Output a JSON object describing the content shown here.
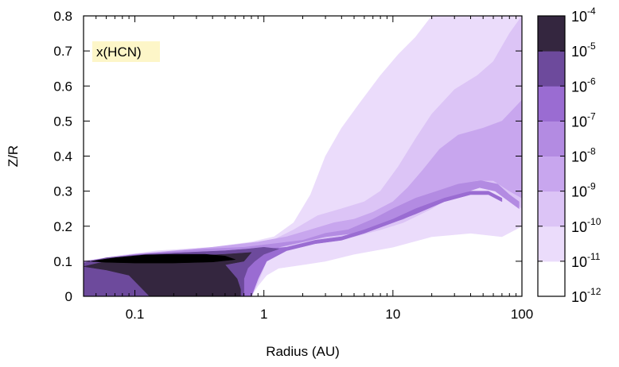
{
  "chart_data": {
    "type": "heatmap",
    "title": "",
    "annotation": "x(HCN)",
    "xlabel": "Radius (AU)",
    "ylabel": "Z/R",
    "xscale": "log",
    "xlim": [
      0.04,
      100
    ],
    "ylim": [
      0,
      0.8
    ],
    "x_ticks": [
      {
        "value": 0.1,
        "label": "0.1"
      },
      {
        "value": 1,
        "label": "1"
      },
      {
        "value": 10,
        "label": "10"
      },
      {
        "value": 100,
        "label": "100"
      }
    ],
    "y_ticks": [
      {
        "value": 0,
        "label": "0"
      },
      {
        "value": 0.1,
        "label": "0.1"
      },
      {
        "value": 0.2,
        "label": "0.2"
      },
      {
        "value": 0.3,
        "label": "0.3"
      },
      {
        "value": 0.4,
        "label": "0.4"
      },
      {
        "value": 0.5,
        "label": "0.5"
      },
      {
        "value": 0.6,
        "label": "0.6"
      },
      {
        "value": 0.7,
        "label": "0.7"
      },
      {
        "value": 0.8,
        "label": "0.8"
      }
    ],
    "colorbar": {
      "scale": "log",
      "placement": "right",
      "levels": [
        {
          "base": "10",
          "exp": "-12",
          "color": "#ffffff"
        },
        {
          "base": "10",
          "exp": "-11",
          "color": "#ebdcfb"
        },
        {
          "base": "10",
          "exp": "-10",
          "color": "#dcc4f6"
        },
        {
          "base": "10",
          "exp": "-9",
          "color": "#c8a6ee"
        },
        {
          "base": "10",
          "exp": "-8",
          "color": "#b38be2"
        },
        {
          "base": "10",
          "exp": "-7",
          "color": "#9a6cd2"
        },
        {
          "base": "10",
          "exp": "-6",
          "color": "#6d4a9c"
        },
        {
          "base": "10",
          "exp": "-5",
          "color": "#34263f"
        },
        {
          "base": "10",
          "exp": "-4",
          "color": "#000000"
        }
      ]
    },
    "regions": [
      {
        "level": 1,
        "points": [
          [
            0.04,
            0.1
          ],
          [
            0.07,
            0.115
          ],
          [
            0.15,
            0.13
          ],
          [
            0.4,
            0.14
          ],
          [
            0.8,
            0.155
          ],
          [
            1.2,
            0.17
          ],
          [
            1.7,
            0.21
          ],
          [
            2.3,
            0.29
          ],
          [
            3,
            0.4
          ],
          [
            4,
            0.48
          ],
          [
            5.5,
            0.55
          ],
          [
            8,
            0.63
          ],
          [
            11,
            0.69
          ],
          [
            15,
            0.74
          ],
          [
            20,
            0.8
          ],
          [
            100,
            0.8
          ],
          [
            100,
            0.2
          ],
          [
            70,
            0.17
          ],
          [
            40,
            0.18
          ],
          [
            20,
            0.17
          ],
          [
            10,
            0.14
          ],
          [
            5,
            0.12
          ],
          [
            3,
            0.1
          ],
          [
            2,
            0.09
          ],
          [
            1.3,
            0.08
          ],
          [
            1.05,
            0.06
          ],
          [
            0.9,
            0.03
          ],
          [
            0.8,
            0
          ],
          [
            0.04,
            0
          ]
        ]
      },
      {
        "level": 2,
        "points": [
          [
            0.04,
            0.1
          ],
          [
            0.1,
            0.12
          ],
          [
            0.5,
            0.14
          ],
          [
            1.1,
            0.155
          ],
          [
            1.7,
            0.19
          ],
          [
            2.6,
            0.23
          ],
          [
            4,
            0.25
          ],
          [
            6,
            0.27
          ],
          [
            8,
            0.3
          ],
          [
            11,
            0.37
          ],
          [
            15,
            0.45
          ],
          [
            20,
            0.52
          ],
          [
            30,
            0.59
          ],
          [
            45,
            0.63
          ],
          [
            60,
            0.67
          ],
          [
            80,
            0.75
          ],
          [
            100,
            0.8
          ],
          [
            100,
            0.25
          ],
          [
            80,
            0.28
          ],
          [
            60,
            0.31
          ],
          [
            45,
            0.32
          ],
          [
            30,
            0.29
          ],
          [
            20,
            0.25
          ],
          [
            12,
            0.21
          ],
          [
            8,
            0.19
          ],
          [
            5,
            0.17
          ],
          [
            3,
            0.16
          ],
          [
            2,
            0.15
          ],
          [
            1.3,
            0.13
          ],
          [
            1.05,
            0.1
          ],
          [
            0.9,
            0.04
          ],
          [
            0.8,
            0
          ],
          [
            0.04,
            0
          ]
        ]
      },
      {
        "level": 3,
        "points": [
          [
            0.04,
            0.1
          ],
          [
            0.1,
            0.12
          ],
          [
            0.4,
            0.14
          ],
          [
            0.9,
            0.155
          ],
          [
            1.5,
            0.17
          ],
          [
            2.3,
            0.19
          ],
          [
            3.5,
            0.21
          ],
          [
            5,
            0.22
          ],
          [
            7,
            0.24
          ],
          [
            10,
            0.27
          ],
          [
            13,
            0.31
          ],
          [
            17,
            0.36
          ],
          [
            23,
            0.42
          ],
          [
            32,
            0.46
          ],
          [
            50,
            0.48
          ],
          [
            70,
            0.5
          ],
          [
            100,
            0.56
          ],
          [
            100,
            0.28
          ],
          [
            80,
            0.3
          ],
          [
            60,
            0.33
          ],
          [
            45,
            0.33
          ],
          [
            30,
            0.31
          ],
          [
            20,
            0.27
          ],
          [
            12,
            0.23
          ],
          [
            8,
            0.21
          ],
          [
            5,
            0.18
          ],
          [
            3,
            0.17
          ],
          [
            2,
            0.16
          ],
          [
            1.3,
            0.14
          ],
          [
            1.05,
            0.11
          ],
          [
            0.9,
            0.05
          ],
          [
            0.8,
            0
          ],
          [
            0.04,
            0
          ]
        ]
      },
      {
        "level": 4,
        "points": [
          [
            0.04,
            0.1
          ],
          [
            0.1,
            0.12
          ],
          [
            0.35,
            0.135
          ],
          [
            0.7,
            0.14
          ],
          [
            1.2,
            0.15
          ],
          [
            2,
            0.16
          ],
          [
            3,
            0.18
          ],
          [
            4.5,
            0.19
          ],
          [
            7,
            0.22
          ],
          [
            10,
            0.25
          ],
          [
            15,
            0.28
          ],
          [
            22,
            0.3
          ],
          [
            32,
            0.32
          ],
          [
            48,
            0.33
          ],
          [
            65,
            0.32
          ],
          [
            80,
            0.29
          ],
          [
            95,
            0.27
          ],
          [
            95,
            0.25
          ],
          [
            80,
            0.27
          ],
          [
            62,
            0.3
          ],
          [
            47,
            0.31
          ],
          [
            32,
            0.29
          ],
          [
            20,
            0.26
          ],
          [
            12,
            0.22
          ],
          [
            8,
            0.2
          ],
          [
            5,
            0.18
          ],
          [
            3,
            0.17
          ],
          [
            2,
            0.155
          ],
          [
            1.3,
            0.14
          ],
          [
            1.05,
            0.11
          ],
          [
            0.9,
            0.05
          ],
          [
            0.8,
            0
          ],
          [
            0.04,
            0
          ]
        ]
      },
      {
        "level": 5,
        "points": [
          [
            0.04,
            0.09
          ],
          [
            0.1,
            0.11
          ],
          [
            0.3,
            0.125
          ],
          [
            0.6,
            0.13
          ],
          [
            1,
            0.135
          ],
          [
            1.5,
            0.14
          ],
          [
            2.5,
            0.16
          ],
          [
            4,
            0.17
          ],
          [
            6,
            0.19
          ],
          [
            10,
            0.22
          ],
          [
            15,
            0.25
          ],
          [
            25,
            0.28
          ],
          [
            40,
            0.3
          ],
          [
            55,
            0.3
          ],
          [
            70,
            0.28
          ],
          [
            70,
            0.27
          ],
          [
            55,
            0.29
          ],
          [
            40,
            0.29
          ],
          [
            25,
            0.27
          ],
          [
            15,
            0.235
          ],
          [
            10,
            0.21
          ],
          [
            6,
            0.18
          ],
          [
            4,
            0.16
          ],
          [
            2.5,
            0.15
          ],
          [
            1.5,
            0.13
          ],
          [
            1.05,
            0.1
          ],
          [
            0.9,
            0.05
          ],
          [
            0.8,
            0
          ],
          [
            0.04,
            0
          ]
        ]
      },
      {
        "level": 6,
        "points": [
          [
            0.04,
            0.095
          ],
          [
            0.06,
            0.11
          ],
          [
            0.12,
            0.12
          ],
          [
            0.25,
            0.125
          ],
          [
            0.5,
            0.13
          ],
          [
            0.75,
            0.135
          ],
          [
            1.0,
            0.14
          ],
          [
            1.3,
            0.135
          ],
          [
            1.0,
            0.12
          ],
          [
            0.85,
            0.1
          ],
          [
            0.75,
            0.08
          ],
          [
            0.7,
            0.05
          ],
          [
            0.7,
            0
          ],
          [
            0.04,
            0
          ]
        ]
      },
      {
        "level": 7,
        "points": [
          [
            0.04,
            0.085
          ],
          [
            0.06,
            0.1
          ],
          [
            0.12,
            0.11
          ],
          [
            0.25,
            0.115
          ],
          [
            0.5,
            0.12
          ],
          [
            0.8,
            0.125
          ],
          [
            0.7,
            0.1
          ],
          [
            0.5,
            0.09
          ],
          [
            0.62,
            0.05
          ],
          [
            0.66,
            0.02
          ],
          [
            0.66,
            0
          ],
          [
            0.13,
            0
          ],
          [
            0.09,
            0.06
          ],
          [
            0.06,
            0.075
          ]
        ]
      },
      {
        "level": 8,
        "points": [
          [
            0.045,
            0.1
          ],
          [
            0.07,
            0.11
          ],
          [
            0.12,
            0.118
          ],
          [
            0.2,
            0.12
          ],
          [
            0.35,
            0.12
          ],
          [
            0.5,
            0.115
          ],
          [
            0.6,
            0.105
          ],
          [
            0.4,
            0.098
          ],
          [
            0.2,
            0.095
          ],
          [
            0.1,
            0.095
          ],
          [
            0.06,
            0.097
          ]
        ]
      }
    ]
  }
}
